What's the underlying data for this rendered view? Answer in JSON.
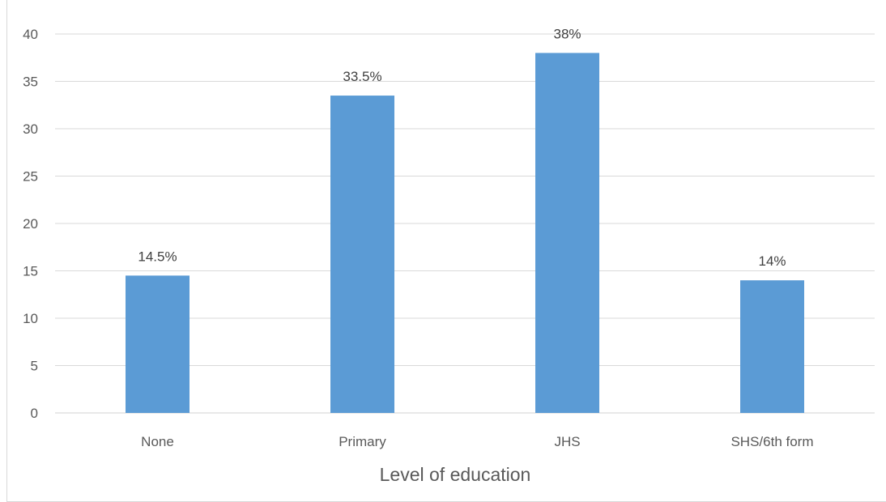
{
  "chart_data": {
    "type": "bar",
    "title": "",
    "xlabel": "Level of education",
    "ylabel": "",
    "categories": [
      "None",
      "Primary",
      "JHS",
      "SHS/6th form"
    ],
    "values": [
      14.5,
      33.5,
      38,
      14
    ],
    "data_labels": [
      "14.5%",
      "33.5%",
      "38%",
      "14%"
    ],
    "ylim": [
      0,
      40
    ],
    "yticks": [
      "0",
      "5",
      "10",
      "15",
      "20",
      "25",
      "30",
      "35",
      "40"
    ],
    "grid": true,
    "legend": "none",
    "colors": {
      "bar": "#5b9bd5",
      "grid": "#d9d9d9",
      "axis": "#d9d9d9"
    }
  }
}
